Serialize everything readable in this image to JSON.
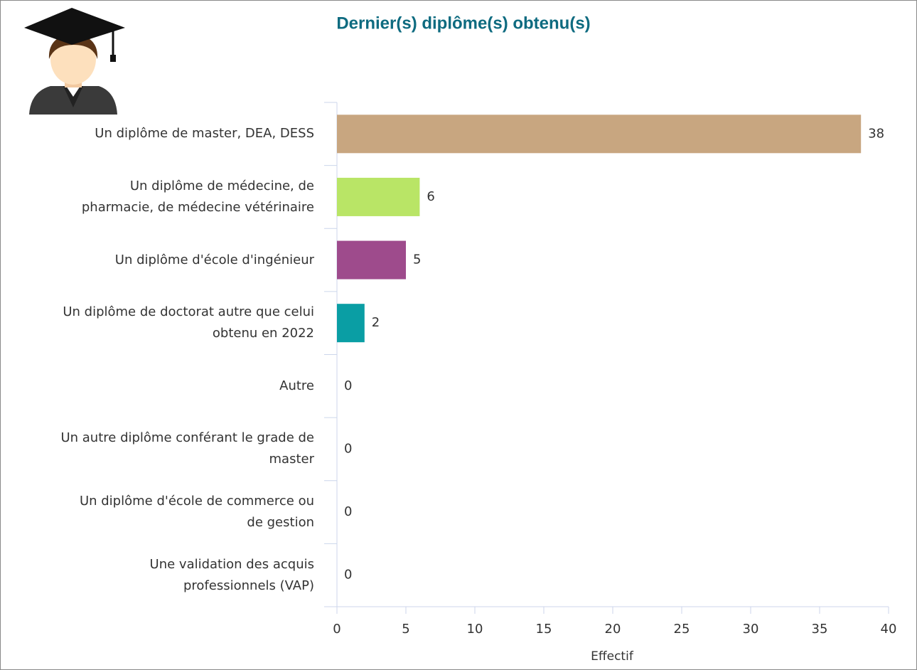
{
  "chart_data": {
    "type": "bar",
    "orientation": "horizontal",
    "title": "Dernier(s) diplôme(s) obtenu(s)",
    "categories": [
      "Un diplôme de master, DEA, DESS",
      "Un diplôme de médecine, de\npharmacie, de médecine vétérinaire",
      "Un diplôme d'école d'ingénieur",
      "Un diplôme de doctorat autre que celui\nobtenu en 2022",
      "Autre",
      "Un autre diplôme conférant le grade de\nmaster",
      "Un diplôme d'école de commerce ou\nde gestion",
      "Une validation des acquis\nprofessionnels (VAP)"
    ],
    "values": [
      38,
      6,
      5,
      2,
      0,
      0,
      0,
      0
    ],
    "colors": [
      "#c8a680",
      "#b9e566",
      "#9e4b8c",
      "#0a9ea4",
      "#7cb5ec",
      "#7cb5ec",
      "#7cb5ec",
      "#7cb5ec"
    ],
    "xlabel": "Effectif",
    "xlim": [
      0,
      40
    ],
    "xticks": [
      0,
      5,
      10,
      15,
      20,
      25,
      30,
      35,
      40
    ],
    "grid": false
  }
}
